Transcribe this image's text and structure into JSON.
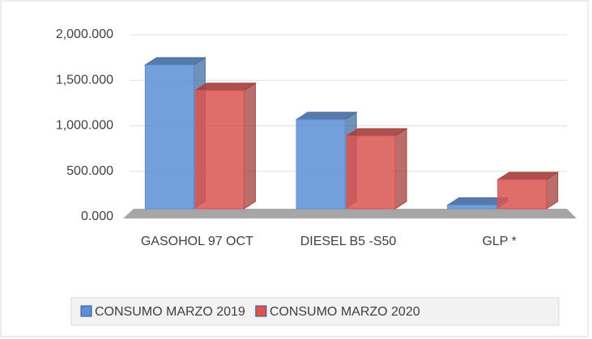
{
  "chart_data": {
    "type": "bar3d",
    "categories": [
      "GASOHOL 97 OCT",
      "DIESEL B5 -S50",
      "GLP *"
    ],
    "series": [
      {
        "name": "CONSUMO MARZO 2019",
        "color": "#5b8fd6",
        "values": [
          1580,
          980,
          40
        ]
      },
      {
        "name": "CONSUMO MARZO 2020",
        "color": "#d9534f",
        "values": [
          1300,
          800,
          320
        ]
      }
    ],
    "ylim": [
      0,
      2000
    ],
    "yticks": [
      {
        "value": 0,
        "label": "0.000"
      },
      {
        "value": 500,
        "label": "500.000"
      },
      {
        "value": 1000,
        "label": "1,000.000"
      },
      {
        "value": 1500,
        "label": "1,500.000"
      },
      {
        "value": 2000,
        "label": "2,000.000"
      }
    ],
    "grid": true,
    "legend": "bottom"
  }
}
